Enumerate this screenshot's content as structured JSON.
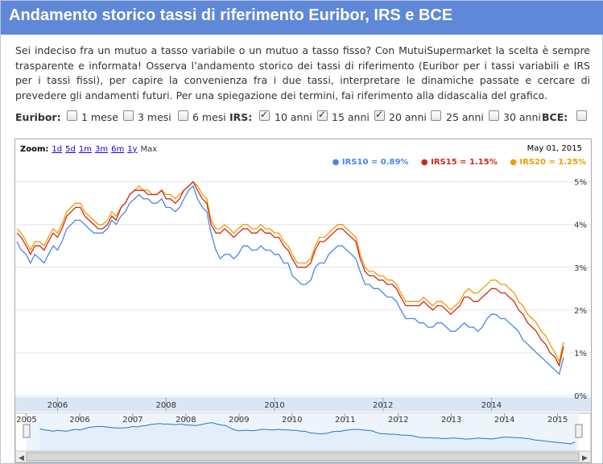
{
  "page": {
    "title": "Andamento storico tassi di riferimento Euribor, IRS e BCE",
    "intro": "Sei indeciso fra un mutuo a tasso variabile o un mutuo a tasso fisso? Con MutuiSupermarket la scelta è sempre trasparente e informata! Osserva l’andamento storico dei tassi di riferimento (Euribor per i tassi variabili e IRS per i tassi fissi), per capire la convenienza fra i due tassi, interpretare le dinamiche passate e cercare di prevedere gli andamenti futuri. Per una spiegazione dei termini, fai riferimento alla didascalia del grafico."
  },
  "filters": {
    "euribor_label": "Euribor:",
    "irs_label": "IRS:",
    "bce_label": "BCE:",
    "euribor": [
      {
        "label": "1 mese",
        "checked": false
      },
      {
        "label": "3 mesi",
        "checked": false
      },
      {
        "label": "6 mesi",
        "checked": false
      }
    ],
    "irs": [
      {
        "label": "10 anni",
        "checked": true
      },
      {
        "label": "15 anni",
        "checked": true
      },
      {
        "label": "20 anni",
        "checked": true
      },
      {
        "label": "25 anni",
        "checked": false
      },
      {
        "label": "30 anni",
        "checked": false
      }
    ],
    "bce": {
      "checked": false
    }
  },
  "zoom": {
    "label": "Zoom:",
    "options": [
      "1d",
      "5d",
      "1m",
      "3m",
      "6m",
      "1y"
    ],
    "active": "Max"
  },
  "current_date": "May 01, 2015",
  "legend": [
    {
      "text": "IRS10 = 0.89%",
      "color": "#4a86e8"
    },
    {
      "text": "IRS15 = 1.15%",
      "color": "#cc2a16"
    },
    {
      "text": "IRS20 = 1.25%",
      "color": "#f29b00"
    }
  ],
  "colors": {
    "irs10": "#4a86e8",
    "irs15": "#cc2a16",
    "irs20": "#f29b00",
    "grid": "#e6e6e6",
    "axis_band": "#dbe6f5",
    "navigator_fill": "#e3eefa",
    "navigator_line": "#2a77b5"
  },
  "chart_data": {
    "type": "line",
    "x_unit": "year",
    "ylim": [
      0,
      5.2
    ],
    "xlim": [
      2005.25,
      2015.33
    ],
    "y_ticks": [
      "0%",
      "1%",
      "2%",
      "3%",
      "4%",
      "5%"
    ],
    "x_ticks": [
      "2006",
      "2008",
      "2010",
      "2012",
      "2014"
    ],
    "navigator_ticks": [
      "2005",
      "2006",
      "2007",
      "2008",
      "2009",
      "2010",
      "2011",
      "2012",
      "2013",
      "2014",
      "2015"
    ],
    "x": [
      2005.25,
      2005.33,
      2005.42,
      2005.5,
      2005.58,
      2005.67,
      2005.75,
      2005.83,
      2005.92,
      2006.0,
      2006.08,
      2006.17,
      2006.25,
      2006.33,
      2006.42,
      2006.5,
      2006.58,
      2006.67,
      2006.75,
      2006.83,
      2006.92,
      2007.0,
      2007.08,
      2007.17,
      2007.25,
      2007.33,
      2007.42,
      2007.5,
      2007.58,
      2007.67,
      2007.75,
      2007.83,
      2007.92,
      2008.0,
      2008.08,
      2008.17,
      2008.25,
      2008.33,
      2008.42,
      2008.5,
      2008.58,
      2008.67,
      2008.75,
      2008.83,
      2008.92,
      2009.0,
      2009.08,
      2009.17,
      2009.25,
      2009.33,
      2009.42,
      2009.5,
      2009.58,
      2009.67,
      2009.75,
      2009.83,
      2009.92,
      2010.0,
      2010.08,
      2010.17,
      2010.25,
      2010.33,
      2010.42,
      2010.5,
      2010.58,
      2010.67,
      2010.75,
      2010.83,
      2010.92,
      2011.0,
      2011.08,
      2011.17,
      2011.25,
      2011.33,
      2011.42,
      2011.5,
      2011.58,
      2011.67,
      2011.75,
      2011.83,
      2011.92,
      2012.0,
      2012.08,
      2012.17,
      2012.25,
      2012.33,
      2012.42,
      2012.5,
      2012.58,
      2012.67,
      2012.75,
      2012.83,
      2012.92,
      2013.0,
      2013.08,
      2013.17,
      2013.25,
      2013.33,
      2013.42,
      2013.5,
      2013.58,
      2013.67,
      2013.75,
      2013.83,
      2013.92,
      2014.0,
      2014.08,
      2014.17,
      2014.25,
      2014.33,
      2014.42,
      2014.5,
      2014.58,
      2014.67,
      2014.75,
      2014.83,
      2014.92,
      2015.0,
      2015.08,
      2015.17,
      2015.25,
      2015.33
    ],
    "series": [
      {
        "name": "IRS10",
        "color": "#4a86e8",
        "values": [
          3.6,
          3.4,
          3.3,
          3.1,
          3.3,
          3.2,
          3.1,
          3.3,
          3.5,
          3.4,
          3.6,
          3.9,
          4.0,
          4.1,
          4.1,
          4.0,
          3.9,
          3.8,
          3.8,
          3.8,
          3.9,
          4.1,
          4.0,
          4.2,
          4.3,
          4.5,
          4.6,
          4.7,
          4.6,
          4.6,
          4.5,
          4.5,
          4.6,
          4.4,
          4.4,
          4.3,
          4.4,
          4.6,
          4.8,
          4.9,
          4.6,
          4.4,
          4.3,
          3.8,
          3.4,
          3.2,
          3.3,
          3.3,
          3.2,
          3.3,
          3.5,
          3.5,
          3.4,
          3.4,
          3.5,
          3.4,
          3.4,
          3.3,
          3.3,
          3.1,
          3.1,
          2.8,
          2.7,
          2.6,
          2.6,
          2.7,
          3.0,
          3.1,
          3.1,
          3.3,
          3.4,
          3.5,
          3.5,
          3.4,
          3.3,
          3.2,
          2.9,
          2.6,
          2.6,
          2.5,
          2.5,
          2.4,
          2.3,
          2.3,
          2.2,
          2.0,
          1.8,
          1.8,
          1.8,
          1.7,
          1.7,
          1.6,
          1.6,
          1.7,
          1.7,
          1.6,
          1.5,
          1.5,
          1.6,
          1.7,
          1.6,
          1.6,
          1.5,
          1.6,
          1.8,
          1.9,
          1.9,
          1.8,
          1.8,
          1.7,
          1.6,
          1.5,
          1.3,
          1.2,
          1.1,
          1.0,
          0.9,
          0.8,
          0.7,
          0.6,
          0.5,
          0.89
        ]
      },
      {
        "name": "IRS15",
        "color": "#cc2a16",
        "values": [
          3.8,
          3.7,
          3.5,
          3.3,
          3.5,
          3.5,
          3.4,
          3.6,
          3.8,
          3.7,
          3.9,
          4.2,
          4.3,
          4.4,
          4.4,
          4.2,
          4.1,
          4.0,
          3.9,
          3.9,
          4.0,
          4.2,
          4.1,
          4.4,
          4.5,
          4.7,
          4.8,
          4.8,
          4.8,
          4.7,
          4.7,
          4.7,
          4.8,
          4.6,
          4.6,
          4.5,
          4.6,
          4.8,
          4.9,
          5.0,
          4.8,
          4.6,
          4.5,
          4.0,
          3.8,
          3.8,
          3.9,
          3.8,
          3.7,
          3.8,
          3.9,
          3.9,
          3.8,
          3.8,
          3.9,
          3.8,
          3.8,
          3.7,
          3.7,
          3.5,
          3.4,
          3.2,
          3.0,
          3.0,
          3.0,
          3.1,
          3.4,
          3.6,
          3.6,
          3.7,
          3.8,
          3.9,
          3.9,
          3.8,
          3.7,
          3.6,
          3.2,
          2.9,
          2.8,
          2.8,
          2.7,
          2.7,
          2.6,
          2.6,
          2.5,
          2.3,
          2.1,
          2.1,
          2.1,
          2.1,
          2.2,
          2.1,
          2.0,
          2.1,
          2.1,
          2.0,
          1.9,
          2.0,
          2.1,
          2.3,
          2.3,
          2.2,
          2.2,
          2.3,
          2.4,
          2.5,
          2.5,
          2.4,
          2.4,
          2.3,
          2.2,
          2.0,
          1.9,
          1.7,
          1.6,
          1.5,
          1.3,
          1.2,
          1.0,
          0.9,
          0.7,
          1.15
        ]
      },
      {
        "name": "IRS20",
        "color": "#f29b00",
        "values": [
          3.9,
          3.8,
          3.6,
          3.4,
          3.6,
          3.6,
          3.5,
          3.7,
          3.9,
          3.8,
          4.0,
          4.3,
          4.4,
          4.5,
          4.5,
          4.3,
          4.2,
          4.1,
          4.0,
          4.0,
          4.1,
          4.3,
          4.2,
          4.4,
          4.5,
          4.7,
          4.8,
          4.9,
          4.8,
          4.8,
          4.7,
          4.7,
          4.8,
          4.7,
          4.7,
          4.6,
          4.7,
          4.8,
          4.9,
          5.0,
          4.9,
          4.7,
          4.6,
          4.1,
          3.9,
          3.9,
          4.0,
          3.9,
          3.8,
          3.9,
          4.0,
          4.0,
          3.9,
          3.9,
          4.0,
          3.9,
          3.9,
          3.8,
          3.8,
          3.6,
          3.5,
          3.3,
          3.1,
          3.1,
          3.1,
          3.2,
          3.5,
          3.7,
          3.7,
          3.8,
          3.9,
          4.0,
          4.0,
          3.9,
          3.8,
          3.7,
          3.3,
          3.0,
          2.9,
          2.9,
          2.8,
          2.8,
          2.7,
          2.7,
          2.6,
          2.4,
          2.2,
          2.2,
          2.2,
          2.2,
          2.3,
          2.2,
          2.1,
          2.2,
          2.2,
          2.1,
          2.0,
          2.1,
          2.2,
          2.4,
          2.5,
          2.4,
          2.4,
          2.5,
          2.6,
          2.7,
          2.7,
          2.6,
          2.6,
          2.5,
          2.4,
          2.2,
          2.1,
          1.9,
          1.8,
          1.7,
          1.5,
          1.4,
          1.2,
          1.0,
          0.8,
          1.25
        ]
      }
    ]
  }
}
